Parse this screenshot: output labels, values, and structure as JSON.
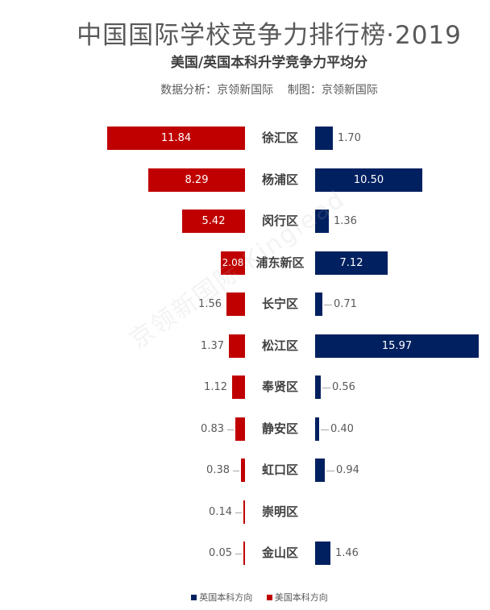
{
  "header": {
    "title": "中国国际学校竞争力排行榜·2019",
    "subtitle": "美国/英国本科升学竞争力平均分",
    "credit": "数据分析：京领新国际    制图：京领新国际"
  },
  "watermark": "京领新国际 Kinglead",
  "legend": [
    {
      "label": "英国本科方向",
      "color": "#002060"
    },
    {
      "label": "美国本科方向",
      "color": "#c00000"
    }
  ],
  "colors": {
    "us": "#c00000",
    "uk": "#002060"
  },
  "rows": [
    {
      "district": "徐汇区",
      "us": "11.84",
      "uk": "1.70"
    },
    {
      "district": "杨浦区",
      "us": "8.29",
      "uk": "10.50"
    },
    {
      "district": "闵行区",
      "us": "5.42",
      "uk": "1.36"
    },
    {
      "district": "浦东新区",
      "us": "2.08",
      "uk": "7.12"
    },
    {
      "district": "长宁区",
      "us": "1.56",
      "uk": "0.71"
    },
    {
      "district": "松江区",
      "us": "1.37",
      "uk": "15.97"
    },
    {
      "district": "奉贤区",
      "us": "1.12",
      "uk": "0.56"
    },
    {
      "district": "静安区",
      "us": "0.83",
      "uk": "0.40"
    },
    {
      "district": "虹口区",
      "us": "0.38",
      "uk": "0.94"
    },
    {
      "district": "崇明区",
      "us": "0.14",
      "uk": ""
    },
    {
      "district": "金山区",
      "us": "0.05",
      "uk": "1.46"
    }
  ],
  "chart_data": {
    "type": "bar",
    "orientation": "horizontal-butterfly",
    "title": "中国国际学校竞争力排行榜·2019",
    "subtitle": "美国/英国本科升学竞争力平均分",
    "categories": [
      "徐汇区",
      "杨浦区",
      "闵行区",
      "浦东新区",
      "长宁区",
      "松江区",
      "奉贤区",
      "静安区",
      "虹口区",
      "崇明区",
      "金山区"
    ],
    "series": [
      {
        "name": "美国本科方向",
        "color": "#c00000",
        "side": "left",
        "values": [
          11.84,
          8.29,
          5.42,
          2.08,
          1.56,
          1.37,
          1.12,
          0.83,
          0.38,
          0.14,
          0.05
        ]
      },
      {
        "name": "英国本科方向",
        "color": "#002060",
        "side": "right",
        "values": [
          1.7,
          10.5,
          1.36,
          7.12,
          0.71,
          15.97,
          0.56,
          0.4,
          0.94,
          null,
          1.46
        ]
      }
    ],
    "xlabel": "",
    "ylabel": "",
    "grid": false,
    "legend_position": "bottom"
  }
}
